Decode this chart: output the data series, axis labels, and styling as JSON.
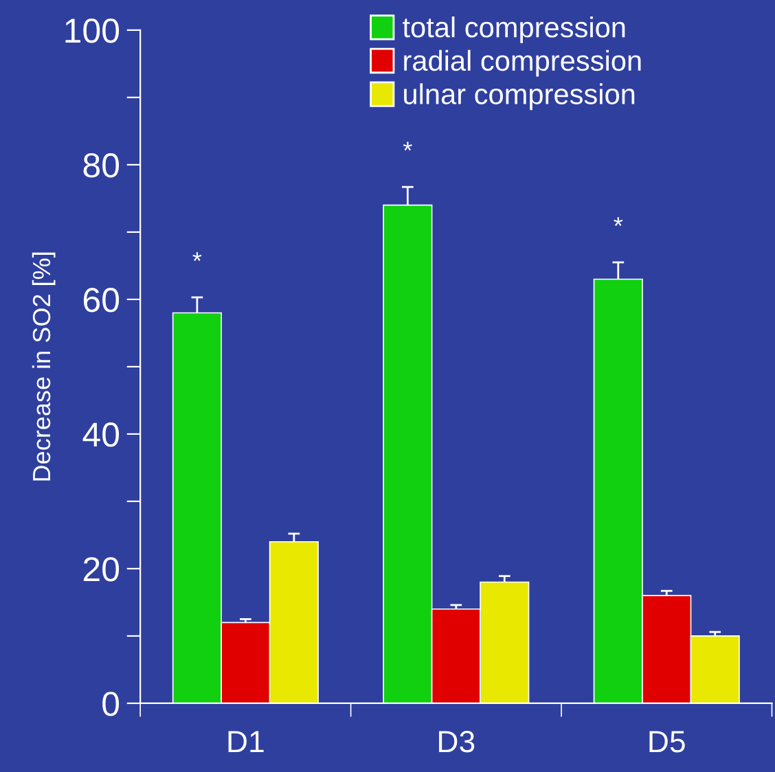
{
  "chart_data": {
    "type": "bar",
    "ylabel": "Decrease in SO2 [%]",
    "categories": [
      "D1",
      "D3",
      "D5"
    ],
    "series": [
      {
        "name": "total compression",
        "color": "#10d010",
        "values": [
          58,
          74,
          63
        ],
        "errors": [
          2.3,
          2.7,
          2.5
        ]
      },
      {
        "name": "radial compression",
        "color": "#e00000",
        "values": [
          12,
          14,
          16
        ],
        "errors": [
          0.5,
          0.6,
          0.7
        ]
      },
      {
        "name": "ulnar compression",
        "color": "#e8e800",
        "values": [
          24,
          18,
          10
        ],
        "errors": [
          1.2,
          0.9,
          0.6
        ]
      }
    ],
    "ylim": [
      0,
      100
    ],
    "yticks": [
      0,
      {
        "value": 10,
        "label": null
      },
      20,
      {
        "value": 30,
        "label": null
      },
      40,
      {
        "value": 50,
        "label": null
      },
      60,
      {
        "value": 70,
        "label": null
      },
      80,
      {
        "value": 90,
        "label": null
      },
      100
    ],
    "annotations": [
      "*",
      "*",
      "*"
    ],
    "grid": false,
    "legend": "top"
  }
}
